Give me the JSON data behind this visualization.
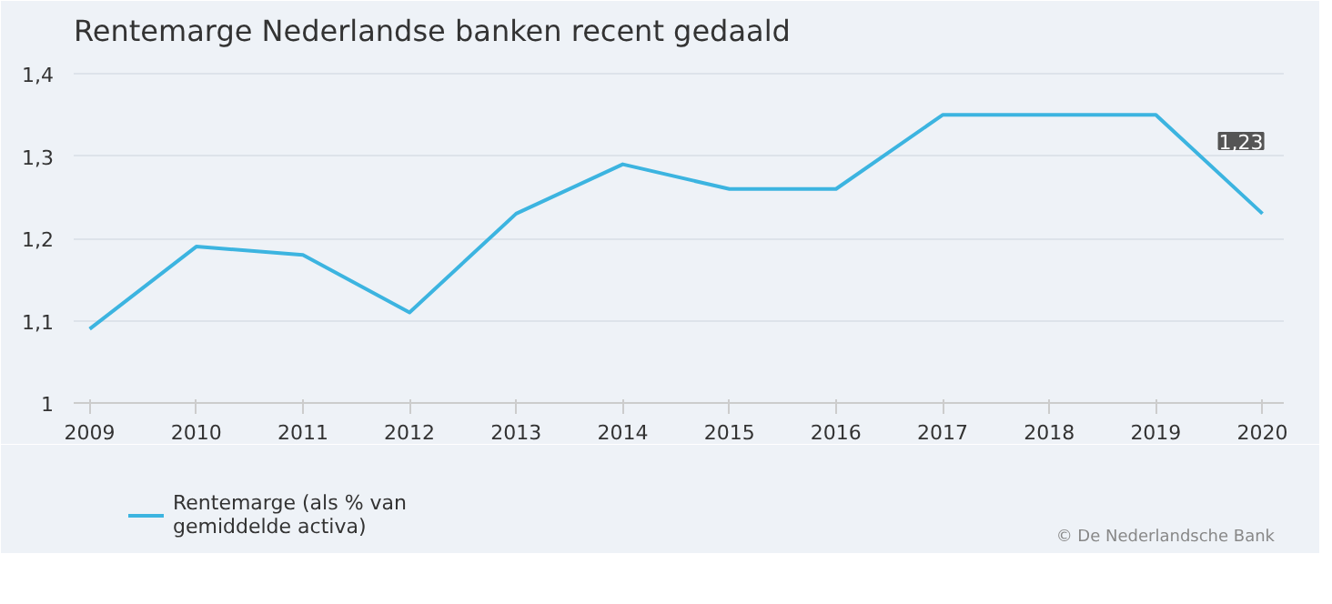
{
  "chart_data": {
    "type": "line",
    "title": "Rentemarge Nederlandse banken recent gedaald",
    "x": [
      2009,
      2010,
      2011,
      2012,
      2013,
      2014,
      2015,
      2016,
      2017,
      2018,
      2019,
      2020
    ],
    "series": [
      {
        "name": "Rentemarge (als % van gemiddelde activa)",
        "color": "#3cb4e0",
        "values": [
          1.09,
          1.19,
          1.18,
          1.11,
          1.23,
          1.29,
          1.26,
          1.26,
          1.35,
          1.35,
          1.35,
          1.23
        ],
        "value_labels": [
          null,
          null,
          null,
          null,
          null,
          null,
          null,
          null,
          null,
          null,
          null,
          "1,23"
        ]
      }
    ],
    "xlim": [
      2008.85,
      2020.2
    ],
    "xticks": [
      2009,
      2010,
      2011,
      2012,
      2013,
      2014,
      2015,
      2016,
      2017,
      2018,
      2019,
      2020
    ],
    "ylim": [
      1,
      1.42
    ],
    "yticks": [
      1,
      {
        "value": 1.1,
        "label": "1,1"
      },
      {
        "value": 1.2,
        "label": "1,2"
      },
      {
        "value": 1.3,
        "label": "1,3"
      },
      {
        "value": 1.4,
        "label": "1,4"
      }
    ],
    "grid": "y",
    "legend": "bottom left",
    "marker": "none",
    "line_style": "solid",
    "annotations": [
      "© De Nederlandsche Bank"
    ]
  }
}
